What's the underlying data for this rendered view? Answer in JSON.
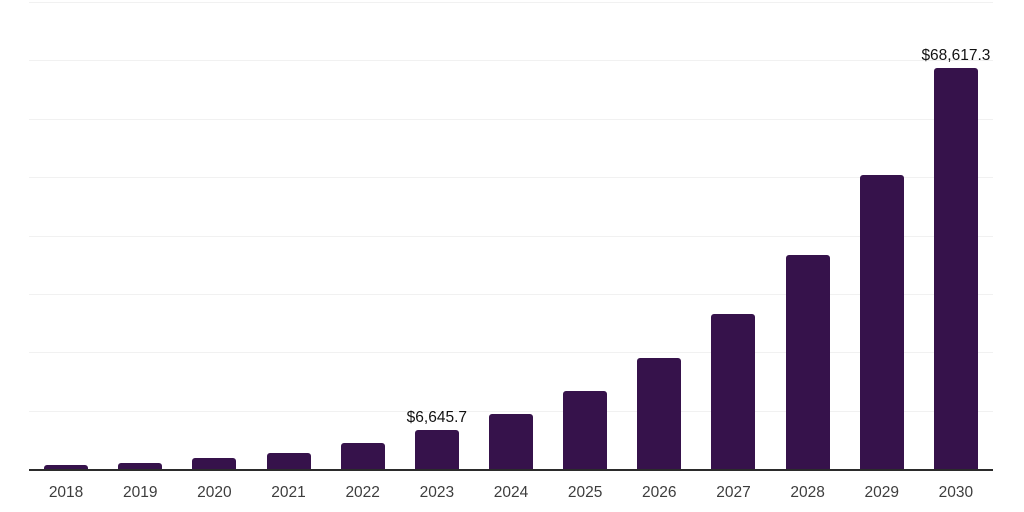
{
  "page": {
    "background": "#ffffff"
  },
  "chart_data": {
    "type": "bar",
    "title": "",
    "xlabel": "",
    "ylabel": "",
    "legend": "none",
    "grid": "horizontal",
    "categories": [
      "2018",
      "2019",
      "2020",
      "2021",
      "2022",
      "2023",
      "2024",
      "2025",
      "2026",
      "2027",
      "2028",
      "2029",
      "2030"
    ],
    "values": [
      650,
      1100,
      1850,
      2800,
      4400,
      6645.7,
      9350,
      13400,
      19000,
      26600,
      36600,
      50300,
      68617.3
    ],
    "data_labels": {
      "2023": "$6,645.7",
      "2030": "$68,617.3"
    },
    "ylim": [
      0,
      80000
    ],
    "gridline_interval": 10000,
    "colors": {
      "bar": "#36124B",
      "axis_line": "#2b2b2b",
      "gridline": "#f1f1f1",
      "tick_label": "#3d3d3d",
      "data_label": "#121212"
    }
  }
}
